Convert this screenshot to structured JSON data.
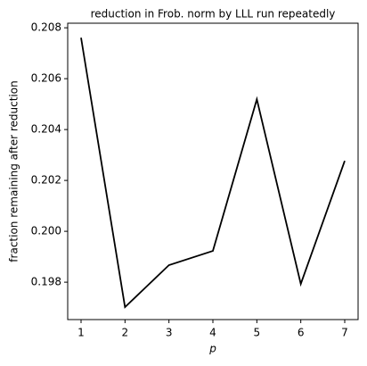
{
  "chart_data": {
    "type": "line",
    "title": "reduction in Frob. norm by LLL run repeatedly",
    "xlabel": "p",
    "ylabel": "fraction remaining after reduction",
    "x": [
      1,
      2,
      3,
      4,
      5,
      6,
      7
    ],
    "series": [
      {
        "color": "#000000",
        "values": [
          0.20761,
          0.19702,
          0.19867,
          0.19923,
          0.20519,
          0.19793,
          0.20277
        ]
      }
    ],
    "xlim": [
      0.696,
      7.304
    ],
    "ylim": [
      0.19653,
      0.20818
    ],
    "xticks": [
      1,
      2,
      3,
      4,
      5,
      6,
      7
    ],
    "yticks": [
      0.198,
      {
        "value": 0.2,
        "label": "0.200"
      },
      0.202,
      0.204,
      0.206,
      0.208
    ]
  }
}
